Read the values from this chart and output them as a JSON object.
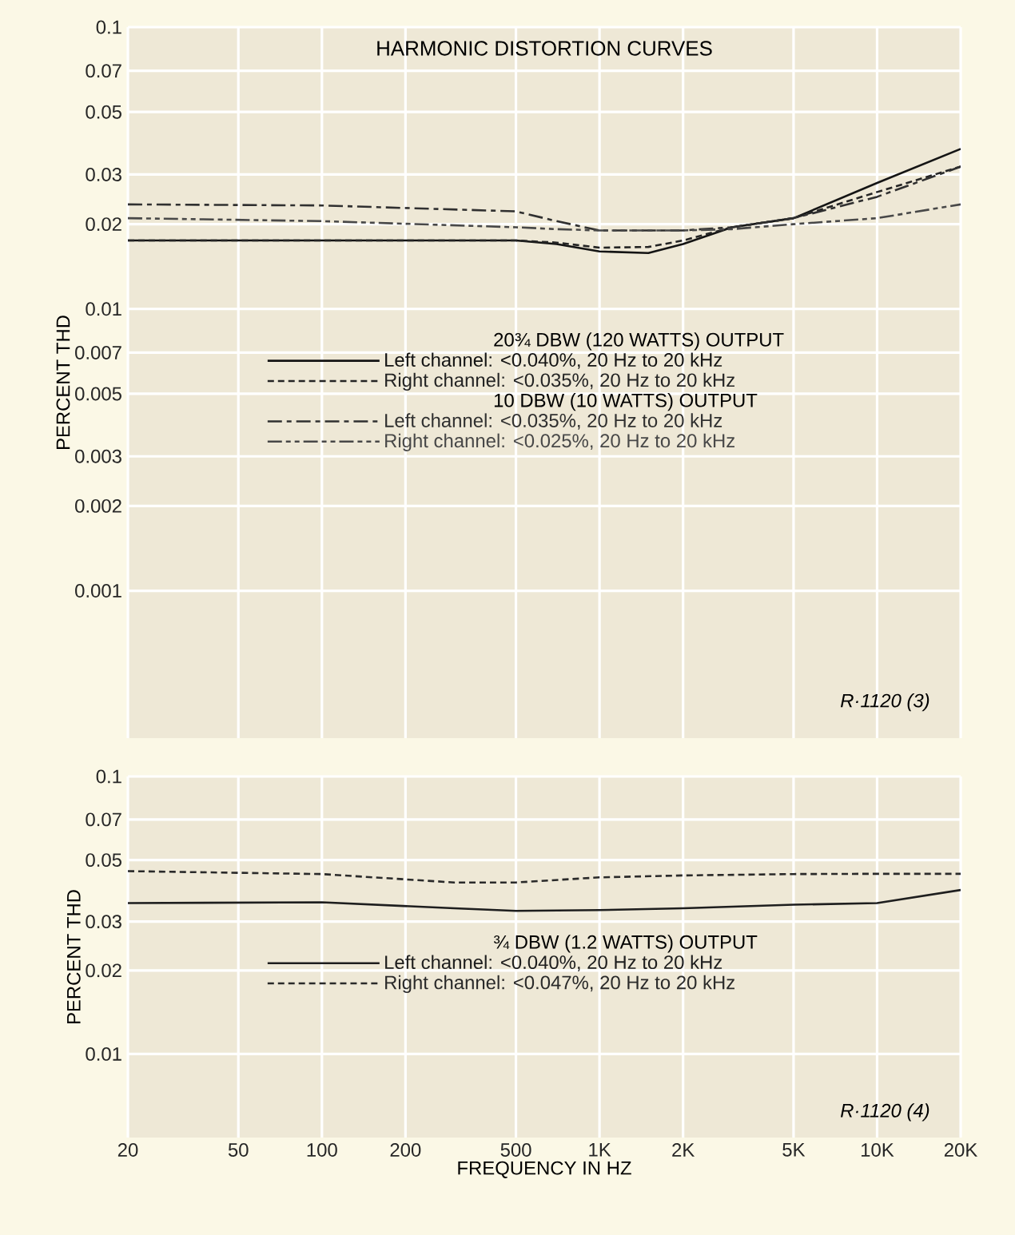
{
  "chart_data": [
    {
      "type": "line",
      "title": "HARMONIC DISTORTION CURVES",
      "ylabel": "PERCENT THD",
      "log": "xy",
      "grid": true,
      "legend": "center",
      "tick_labels": "y",
      "annotations": [
        "20¾ DBW (120 WATTS) OUTPUT",
        "10 DBW (10 WATTS) OUTPUT",
        "R·1120 (3)"
      ],
      "x": [
        20,
        100,
        500,
        700,
        1000,
        1500,
        2000,
        3000,
        5000,
        10000,
        20000
      ],
      "xlim": [
        20,
        20000
      ],
      "ylim": [
        0.0003,
        0.1
      ],
      "xticks": [
        20,
        50,
        100,
        200,
        500,
        1000,
        2000,
        5000,
        10000,
        20000
      ],
      "yticks": [
        0.1,
        0.07,
        0.05,
        0.03,
        0.02,
        0.01,
        0.007,
        0.005,
        0.003,
        0.002,
        0.001
      ],
      "series": [
        {
          "name": "Left channel: <0.040%, 20 Hz to 20 kHz",
          "color": "#141414",
          "line_style": "solid",
          "values": [
            0.0175,
            0.0175,
            0.0175,
            0.017,
            0.016,
            0.0158,
            0.017,
            0.0195,
            0.021,
            0.028,
            0.037
          ]
        },
        {
          "name": "Right channel: <0.035%, 20 Hz to 20 kHz",
          "color": "#242424",
          "line_style": "dashed",
          "values": [
            0.0175,
            0.0175,
            0.0175,
            0.0172,
            0.0165,
            0.0166,
            0.0175,
            0.0195,
            0.021,
            0.026,
            0.032
          ]
        },
        {
          "name": "Left channel: <0.035%, 20 Hz to 20 kHz",
          "color": "#303030",
          "line_style": "dashdot",
          "values": [
            0.0235,
            0.0233,
            0.0222,
            0.0205,
            0.019,
            0.019,
            0.019,
            0.0195,
            0.021,
            0.025,
            0.032
          ]
        },
        {
          "name": "Right channel: <0.025%, 20 Hz to 20 kHz",
          "color": "#484848",
          "line_style": "dashdotdot",
          "values": [
            0.021,
            0.0205,
            0.0195,
            0.0192,
            0.019,
            0.019,
            0.019,
            0.0192,
            0.02,
            0.021,
            0.0235
          ]
        }
      ]
    },
    {
      "type": "line",
      "xlabel": "FREQUENCY IN HZ",
      "ylabel": "PERCENT THD",
      "log": "xy",
      "grid": true,
      "legend": "center",
      "annotations": [
        "¾ DBW (1.2 WATTS) OUTPUT",
        "R·1120 (4)"
      ],
      "x": [
        20,
        100,
        300,
        500,
        1000,
        2000,
        5000,
        10000,
        20000
      ],
      "xlim": [
        20,
        20000
      ],
      "ylim": [
        0.005,
        0.1
      ],
      "xticks": [
        20,
        50,
        100,
        200,
        500,
        {
          "value": 1000,
          "label": "1K"
        },
        {
          "value": 2000,
          "label": "2K"
        },
        {
          "value": 5000,
          "label": "5K"
        },
        {
          "value": 10000,
          "label": "10K"
        },
        {
          "value": 20000,
          "label": "20K"
        }
      ],
      "yticks": [
        0.1,
        0.07,
        0.05,
        0.03,
        0.02,
        0.01
      ],
      "series": [
        {
          "name": "Left channel: <0.040%, 20 Hz to 20 kHz",
          "color": "#1e1e1e",
          "line_style": "solid",
          "values": [
            0.035,
            0.0352,
            0.0335,
            0.0328,
            0.033,
            0.0335,
            0.0345,
            0.035,
            0.039
          ]
        },
        {
          "name": "Right channel: <0.047%, 20 Hz to 20 kHz",
          "color": "#2a2a2a",
          "line_style": "dashed",
          "values": [
            0.0456,
            0.0445,
            0.0415,
            0.0415,
            0.0433,
            0.044,
            0.0445,
            0.0446,
            0.0446
          ]
        }
      ]
    }
  ]
}
